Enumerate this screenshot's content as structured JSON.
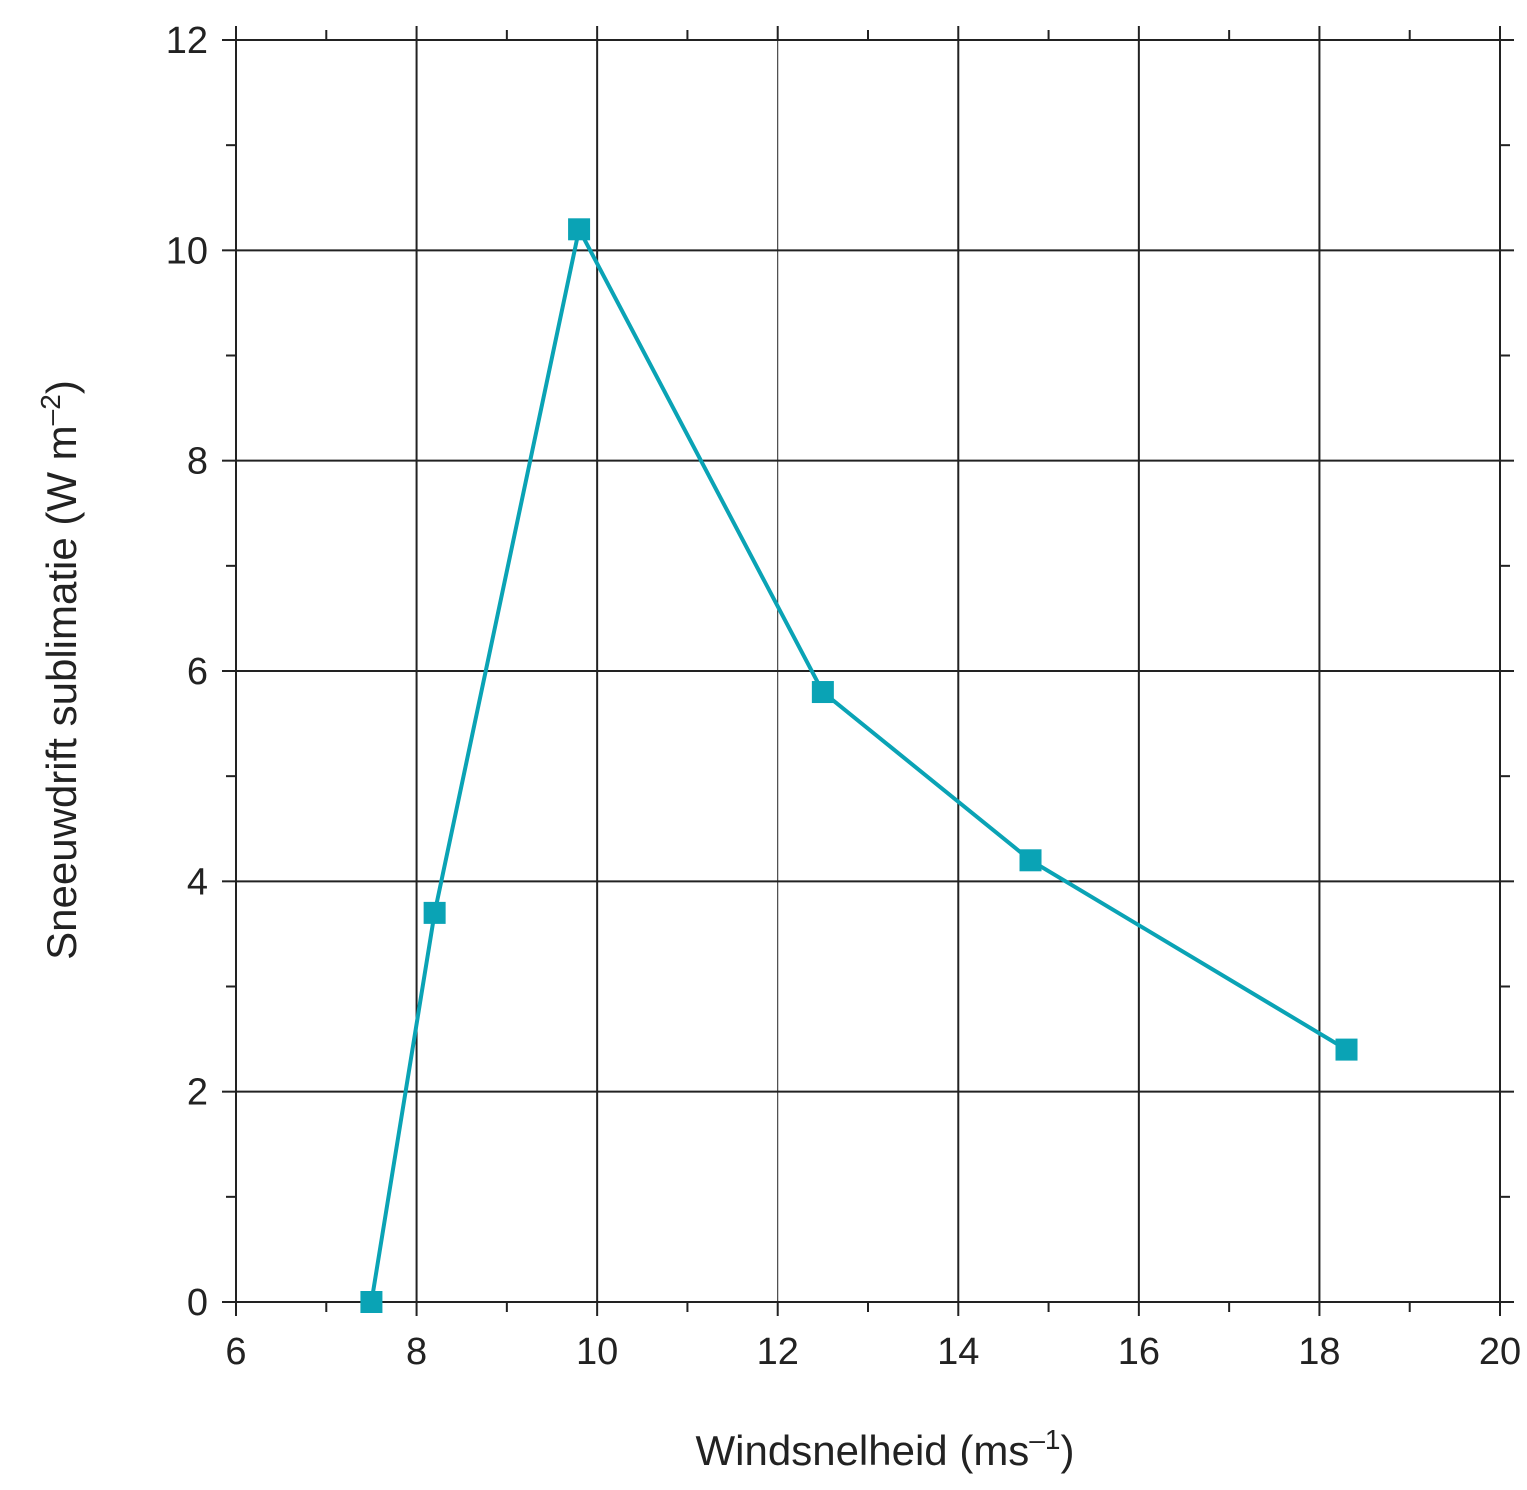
{
  "chart_data": {
    "type": "line",
    "xlabel": "Windsnelheid (ms",
    "xlabel_sup": "–1",
    "xlabel_end": ")",
    "ylabel": "Sneeuwdrift sublimatie (W m",
    "ylabel_sup": "–2",
    "ylabel_end": ")",
    "xlim": [
      6,
      20
    ],
    "ylim": [
      0,
      12
    ],
    "x_ticks": [
      "6",
      "8",
      "10",
      "12",
      "14",
      "16",
      "18",
      "20"
    ],
    "y_ticks": [
      "0",
      "2",
      "4",
      "6",
      "8",
      "10",
      "12"
    ],
    "grid": true,
    "series": [
      {
        "color": "#0aa3b5",
        "marker": "square",
        "points": [
          {
            "x": 7.5,
            "y": 0.0
          },
          {
            "x": 8.2,
            "y": 3.7
          },
          {
            "x": 9.8,
            "y": 10.2
          },
          {
            "x": 12.5,
            "y": 5.8
          },
          {
            "x": 14.8,
            "y": 4.2
          },
          {
            "x": 18.3,
            "y": 2.4
          }
        ]
      }
    ]
  }
}
